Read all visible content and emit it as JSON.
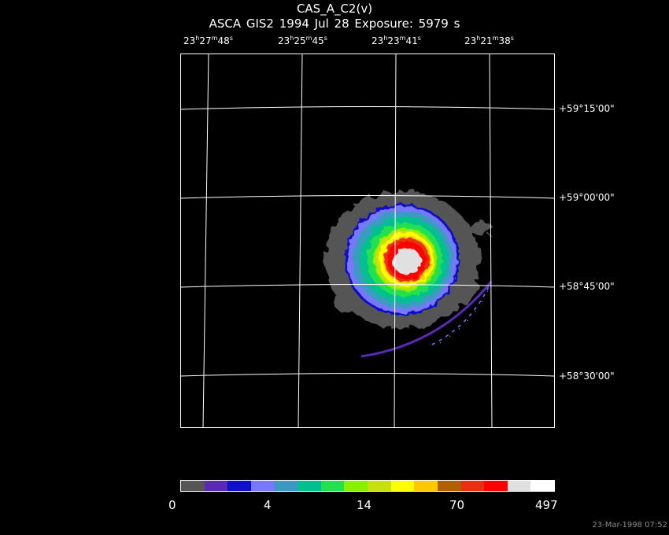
{
  "header": {
    "title": "CAS_A_C2(v)",
    "subtitle": "ASCA GIS2   1994 Jul 28    Exposure:  5979 s"
  },
  "ra_axis": {
    "labels": [
      {
        "h": "23",
        "m": "27",
        "s": "48"
      },
      {
        "h": "23",
        "m": "25",
        "s": "45"
      },
      {
        "h": "23",
        "m": "23",
        "s": "41"
      },
      {
        "h": "23",
        "m": "21",
        "s": "38"
      }
    ]
  },
  "dec_axis": {
    "labels": [
      "+59°15'00\"",
      "+59°00'00\"",
      "+58°45'00\"",
      "+58°30'00\""
    ]
  },
  "colorbar": {
    "colors": [
      "#555555",
      "#5a2ab4",
      "#1010c8",
      "#7878ff",
      "#3c9ac0",
      "#00c090",
      "#22e050",
      "#88f000",
      "#c8e010",
      "#ffff00",
      "#ffc800",
      "#b06000",
      "#e83010",
      "#ff0000",
      "#e0e0e0",
      "#ffffff"
    ],
    "tick_labels": [
      "0",
      "4",
      "14",
      "70",
      "497"
    ]
  },
  "footer": {
    "timestamp": "23-Mar-1998 07:52"
  }
}
